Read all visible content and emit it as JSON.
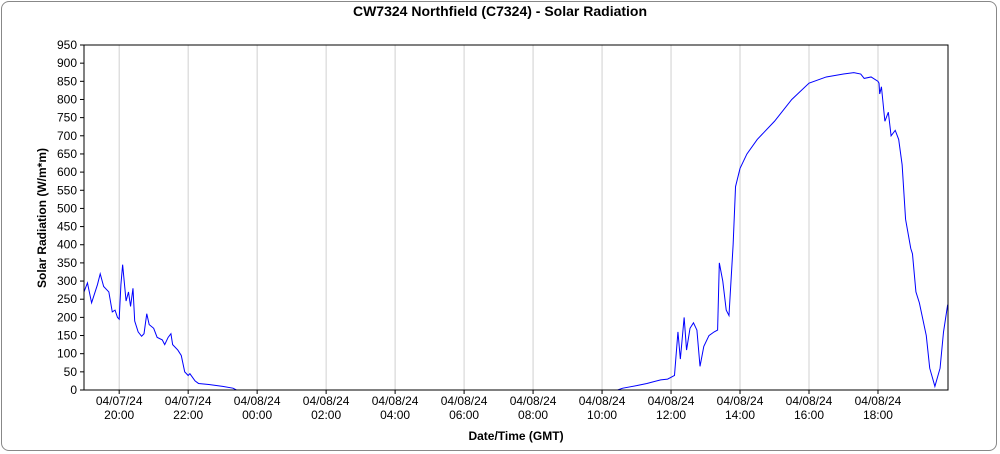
{
  "chart_data": {
    "type": "line",
    "title": "CW7324 Northfield (C7324) - Solar Radiation",
    "x_label": "Date/Time (GMT)",
    "y_label": "Solar Radiation (W/m*m)",
    "grid": "x",
    "xlim": [
      18.98,
      44.03
    ],
    "ylim": [
      0,
      950
    ],
    "yticks": [
      0,
      50,
      100,
      150,
      200,
      250,
      300,
      350,
      400,
      450,
      500,
      550,
      600,
      650,
      700,
      750,
      800,
      850,
      900,
      950
    ],
    "xticks": [
      {
        "value": 20,
        "label": "04/07/24 20:00"
      },
      {
        "value": 22,
        "label": "04/07/24 22:00"
      },
      {
        "value": 24,
        "label": "04/08/24 00:00"
      },
      {
        "value": 26,
        "label": "04/08/24 02:00"
      },
      {
        "value": 28,
        "label": "04/08/24 04:00"
      },
      {
        "value": 30,
        "label": "04/08/24 06:00"
      },
      {
        "value": 32,
        "label": "04/08/24 08:00"
      },
      {
        "value": 34,
        "label": "04/08/24 10:00"
      },
      {
        "value": 36,
        "label": "04/08/24 12:00"
      },
      {
        "value": 38,
        "label": "04/08/24 14:00"
      },
      {
        "value": 40,
        "label": "04/08/24 16:00"
      },
      {
        "value": 42,
        "label": "04/08/24 18:00"
      }
    ],
    "x": [
      18.98,
      19.08,
      19.2,
      19.37,
      19.45,
      19.55,
      19.7,
      19.8,
      19.88,
      19.95,
      20.0,
      20.05,
      20.1,
      20.2,
      20.27,
      20.33,
      20.4,
      20.45,
      20.55,
      20.65,
      20.72,
      20.8,
      20.87,
      21.0,
      21.1,
      21.25,
      21.32,
      21.42,
      21.5,
      21.55,
      21.7,
      21.8,
      21.9,
      22.0,
      22.05,
      22.2,
      22.3,
      22.6,
      23.0,
      23.3,
      23.4,
      34.45,
      34.6,
      35.0,
      35.3,
      35.7,
      35.9,
      36.0,
      36.1,
      36.2,
      36.27,
      36.38,
      36.45,
      36.55,
      36.65,
      36.75,
      36.84,
      36.95,
      37.1,
      37.25,
      37.35,
      37.4,
      37.5,
      37.6,
      37.68,
      37.8,
      37.87,
      38.0,
      38.2,
      38.5,
      39.0,
      39.5,
      40.0,
      40.5,
      41.0,
      41.3,
      41.5,
      41.6,
      41.8,
      42.0,
      42.03,
      42.05,
      42.1,
      42.2,
      42.3,
      42.38,
      42.5,
      42.6,
      42.7,
      42.8,
      42.95,
      43.0,
      43.1,
      43.2,
      43.4,
      43.5,
      43.65,
      43.8,
      43.9,
      44.02
    ],
    "series": [
      {
        "name": "Solar Radiation",
        "color": "#0000ff",
        "values": [
          270,
          295,
          240,
          290,
          320,
          285,
          270,
          215,
          220,
          200,
          195,
          290,
          345,
          245,
          270,
          230,
          280,
          190,
          160,
          148,
          155,
          210,
          180,
          170,
          145,
          138,
          125,
          145,
          155,
          125,
          110,
          95,
          50,
          40,
          45,
          25,
          18,
          15,
          10,
          5,
          0,
          0,
          5,
          12,
          18,
          28,
          30,
          35,
          40,
          160,
          85,
          200,
          110,
          170,
          185,
          165,
          65,
          120,
          150,
          160,
          165,
          350,
          300,
          220,
          205,
          400,
          560,
          610,
          650,
          690,
          740,
          800,
          845,
          862,
          870,
          874,
          870,
          858,
          862,
          850,
          845,
          815,
          835,
          740,
          765,
          700,
          715,
          690,
          620,
          470,
          390,
          375,
          270,
          240,
          150,
          60,
          10,
          60,
          160,
          235
        ]
      }
    ]
  }
}
